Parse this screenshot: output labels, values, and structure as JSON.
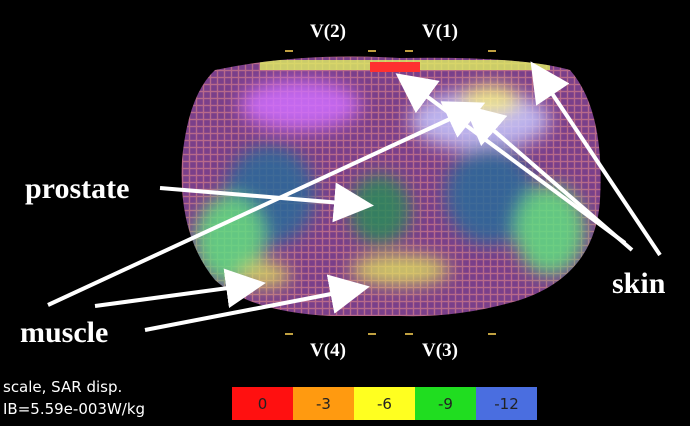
{
  "probes": {
    "top_left": "V(2)",
    "top_right": "V(1)",
    "bottom_left": "V(4)",
    "bottom_right": "V(3)"
  },
  "annotations": {
    "prostate": "prostate",
    "skin": "skin",
    "muscle": "muscle"
  },
  "info": {
    "line1": "scale,  SAR disp.",
    "line2": "IB=5.59e-003W/kg"
  },
  "colorbar": [
    {
      "label": "0",
      "color": "#ff1010"
    },
    {
      "label": "-3",
      "color": "#ff9a10"
    },
    {
      "label": "-6",
      "color": "#ffff20"
    },
    {
      "label": "-9",
      "color": "#20dd20"
    },
    {
      "label": "-12",
      "color": "#4a6ee0"
    }
  ]
}
